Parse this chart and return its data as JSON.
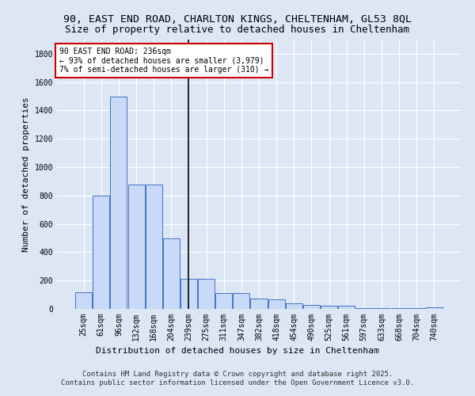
{
  "title_line1": "90, EAST END ROAD, CHARLTON KINGS, CHELTENHAM, GL53 8QL",
  "title_line2": "Size of property relative to detached houses in Cheltenham",
  "xlabel": "Distribution of detached houses by size in Cheltenham",
  "ylabel": "Number of detached properties",
  "categories": [
    "25sqm",
    "61sqm",
    "96sqm",
    "132sqm",
    "168sqm",
    "204sqm",
    "239sqm",
    "275sqm",
    "311sqm",
    "347sqm",
    "382sqm",
    "418sqm",
    "454sqm",
    "490sqm",
    "525sqm",
    "561sqm",
    "597sqm",
    "633sqm",
    "668sqm",
    "704sqm",
    "740sqm"
  ],
  "values": [
    120,
    800,
    1500,
    880,
    880,
    500,
    210,
    210,
    110,
    110,
    70,
    65,
    40,
    30,
    25,
    20,
    5,
    5,
    5,
    5,
    10
  ],
  "bar_color": "#c9daf8",
  "bar_edge_color": "#4472c4",
  "marker_index": 6,
  "annotation_title": "90 EAST END ROAD: 236sqm",
  "annotation_line2": "← 93% of detached houses are smaller (3,979)",
  "annotation_line3": "7% of semi-detached houses are larger (310) →",
  "annotation_box_color": "#ffffff",
  "annotation_box_edge": "#cc0000",
  "ylim": [
    0,
    1900
  ],
  "yticks": [
    0,
    200,
    400,
    600,
    800,
    1000,
    1200,
    1400,
    1600,
    1800
  ],
  "background_color": "#dce6f5",
  "footer_line1": "Contains HM Land Registry data © Crown copyright and database right 2025.",
  "footer_line2": "Contains public sector information licensed under the Open Government Licence v3.0.",
  "title_fontsize": 9.5,
  "subtitle_fontsize": 9,
  "axis_label_fontsize": 8,
  "tick_fontsize": 7,
  "annotation_fontsize": 7,
  "footer_fontsize": 6.5
}
